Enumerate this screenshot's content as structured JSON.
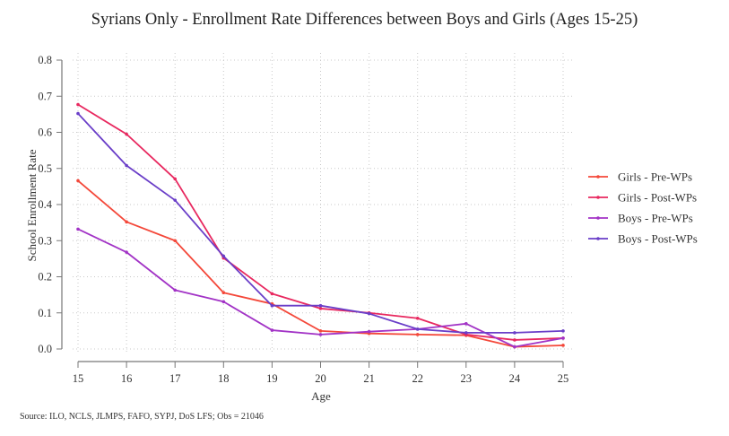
{
  "chart_data": {
    "type": "line",
    "title": "Syrians Only - Enrollment Rate Differences between Boys and Girls (Ages 15-25)",
    "xlabel": "Age",
    "ylabel": "School Enrollment Rate",
    "x": [
      15,
      16,
      17,
      18,
      19,
      20,
      21,
      22,
      23,
      24,
      25
    ],
    "xticks": [
      "15",
      "16",
      "17",
      "18",
      "19",
      "20",
      "21",
      "22",
      "23",
      "24",
      "25"
    ],
    "yticks": [
      "0.0",
      "0.1",
      "0.2",
      "0.3",
      "0.4",
      "0.5",
      "0.6",
      "0.7",
      "0.8"
    ],
    "ylim": [
      0,
      0.8
    ],
    "xlim": [
      15,
      25
    ],
    "grid": true,
    "legend_position": "right",
    "series": [
      {
        "name": "Girls - Pre-WPs",
        "color": "#f4483a",
        "values": [
          0.466,
          0.352,
          0.3,
          0.156,
          0.125,
          0.05,
          0.043,
          0.04,
          0.038,
          0.006,
          0.01
        ]
      },
      {
        "name": "Girls - Post-WPs",
        "color": "#e8285f",
        "values": [
          0.677,
          0.595,
          0.471,
          0.252,
          0.153,
          0.112,
          0.1,
          0.085,
          0.04,
          0.025,
          0.03
        ]
      },
      {
        "name": "Boys - Pre-WPs",
        "color": "#a233c6",
        "values": [
          0.332,
          0.268,
          0.163,
          0.131,
          0.052,
          0.04,
          0.048,
          0.055,
          0.07,
          0.006,
          0.03
        ]
      },
      {
        "name": "Boys - Post-WPs",
        "color": "#6a3ec8",
        "values": [
          0.652,
          0.508,
          0.412,
          0.257,
          0.12,
          0.12,
          0.098,
          0.055,
          0.045,
          0.045,
          0.05
        ]
      }
    ]
  },
  "source_note": "Source: ILO, NCLS, JLMPS, FAFO, SYPJ, DoS LFS; Obs = 21046"
}
